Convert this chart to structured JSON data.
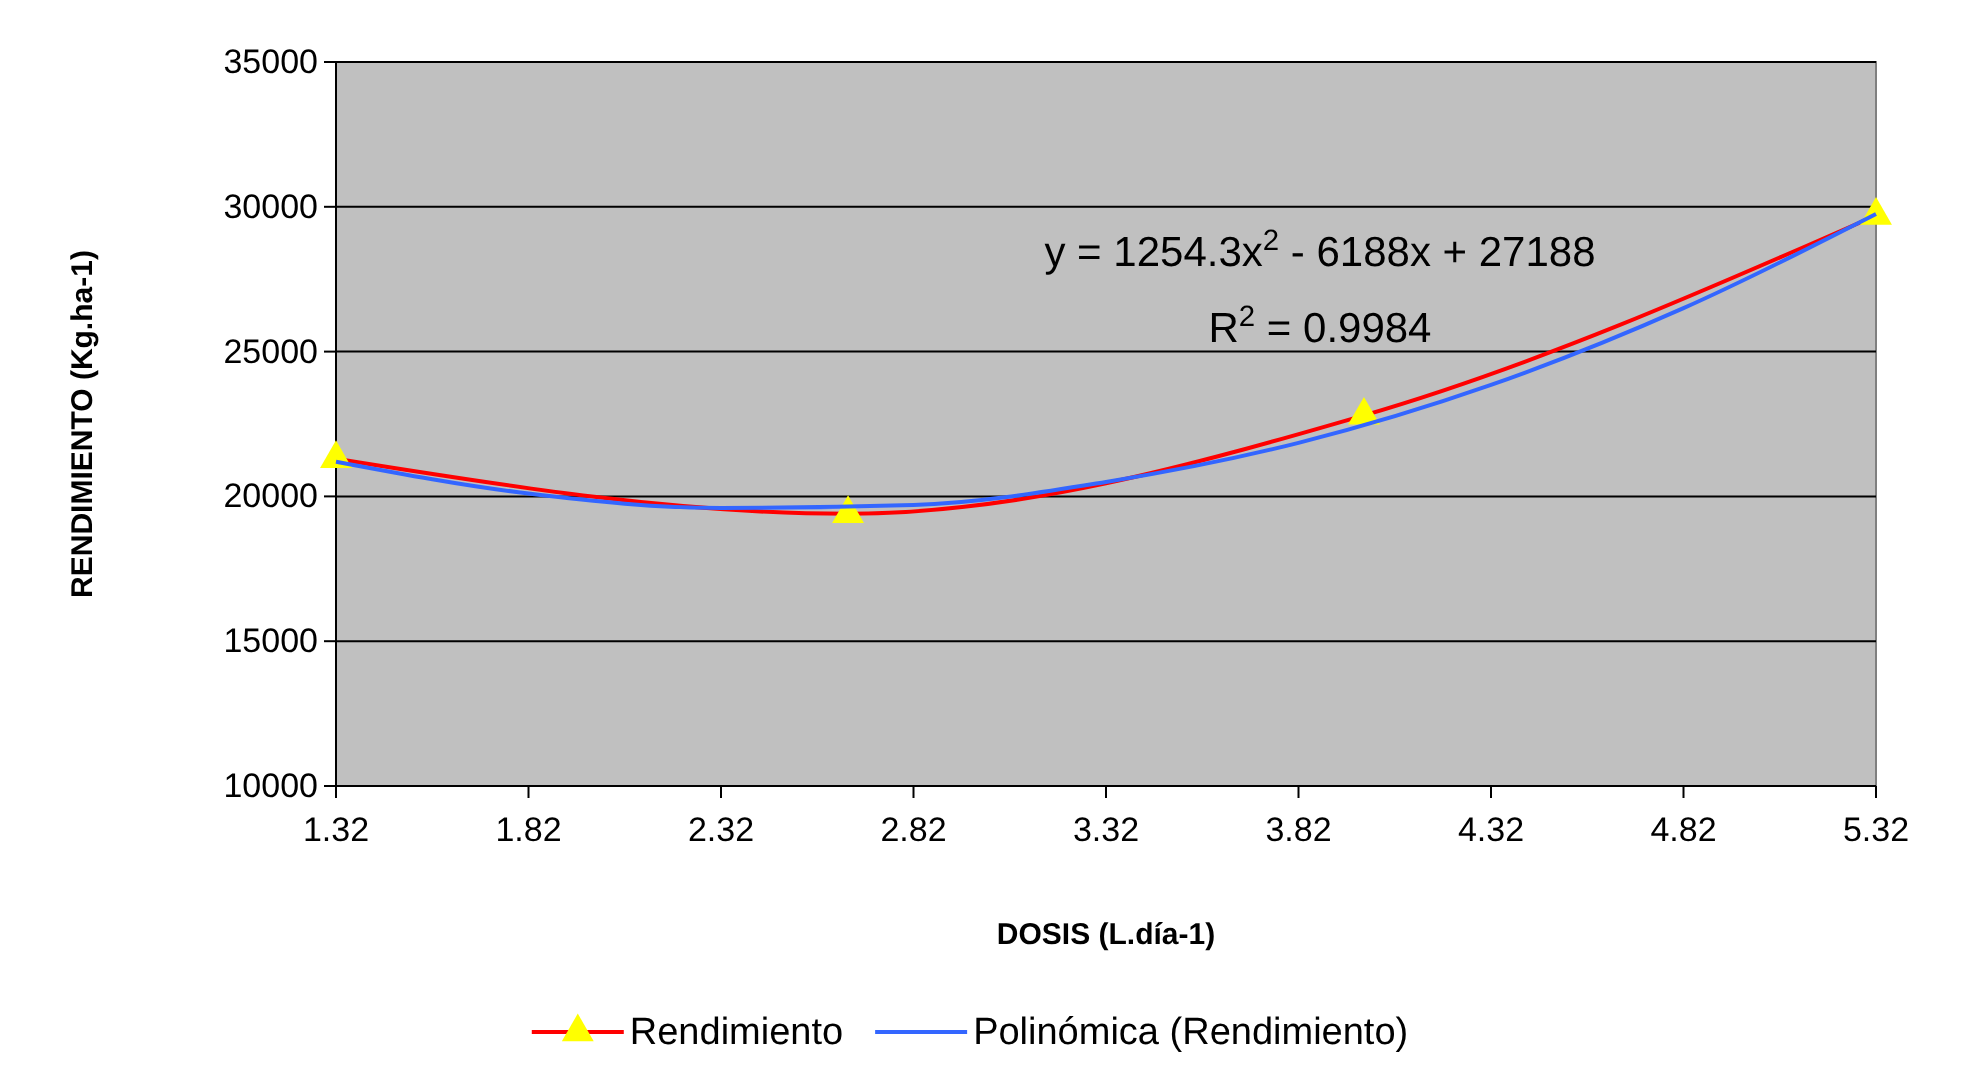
{
  "chart_data": {
    "type": "line",
    "xlabel": "DOSIS (L.día-1)",
    "ylabel": "RENDIMIENTO (Kg.ha-1)",
    "xlim": [
      1.32,
      5.32
    ],
    "xticks": [
      1.32,
      1.82,
      2.32,
      2.82,
      3.32,
      3.82,
      4.32,
      4.82,
      5.32
    ],
    "ylim": [
      10000,
      35000
    ],
    "yticks": [
      10000,
      15000,
      20000,
      25000,
      30000,
      35000
    ],
    "grid": "y",
    "legend": "bottom",
    "series": [
      {
        "name": "Rendimiento",
        "color": "#ff0000",
        "marker": "triangle",
        "colors": [
          "#ffff00",
          "#ffff00",
          "#ffff00",
          "#ffff00"
        ],
        "x": [
          1.32,
          2.65,
          3.99,
          5.32
        ],
        "values": [
          21300,
          19400,
          22800,
          29700
        ]
      },
      {
        "name": "Polinómica (Rendimiento)",
        "color": "#3366ff",
        "marker": "none",
        "x": [
          1.32,
          1.82,
          2.32,
          2.82,
          3.32,
          3.82,
          4.32,
          4.82,
          5.32
        ],
        "values": [
          21200,
          20100,
          19600,
          19700,
          20500,
          21850,
          23850,
          26500,
          29750
        ]
      }
    ],
    "annotations": [
      "y = 1254.3x$^{2}$ - 6188x + 27188",
      "R$^{2}$ = 0.9984"
    ]
  }
}
